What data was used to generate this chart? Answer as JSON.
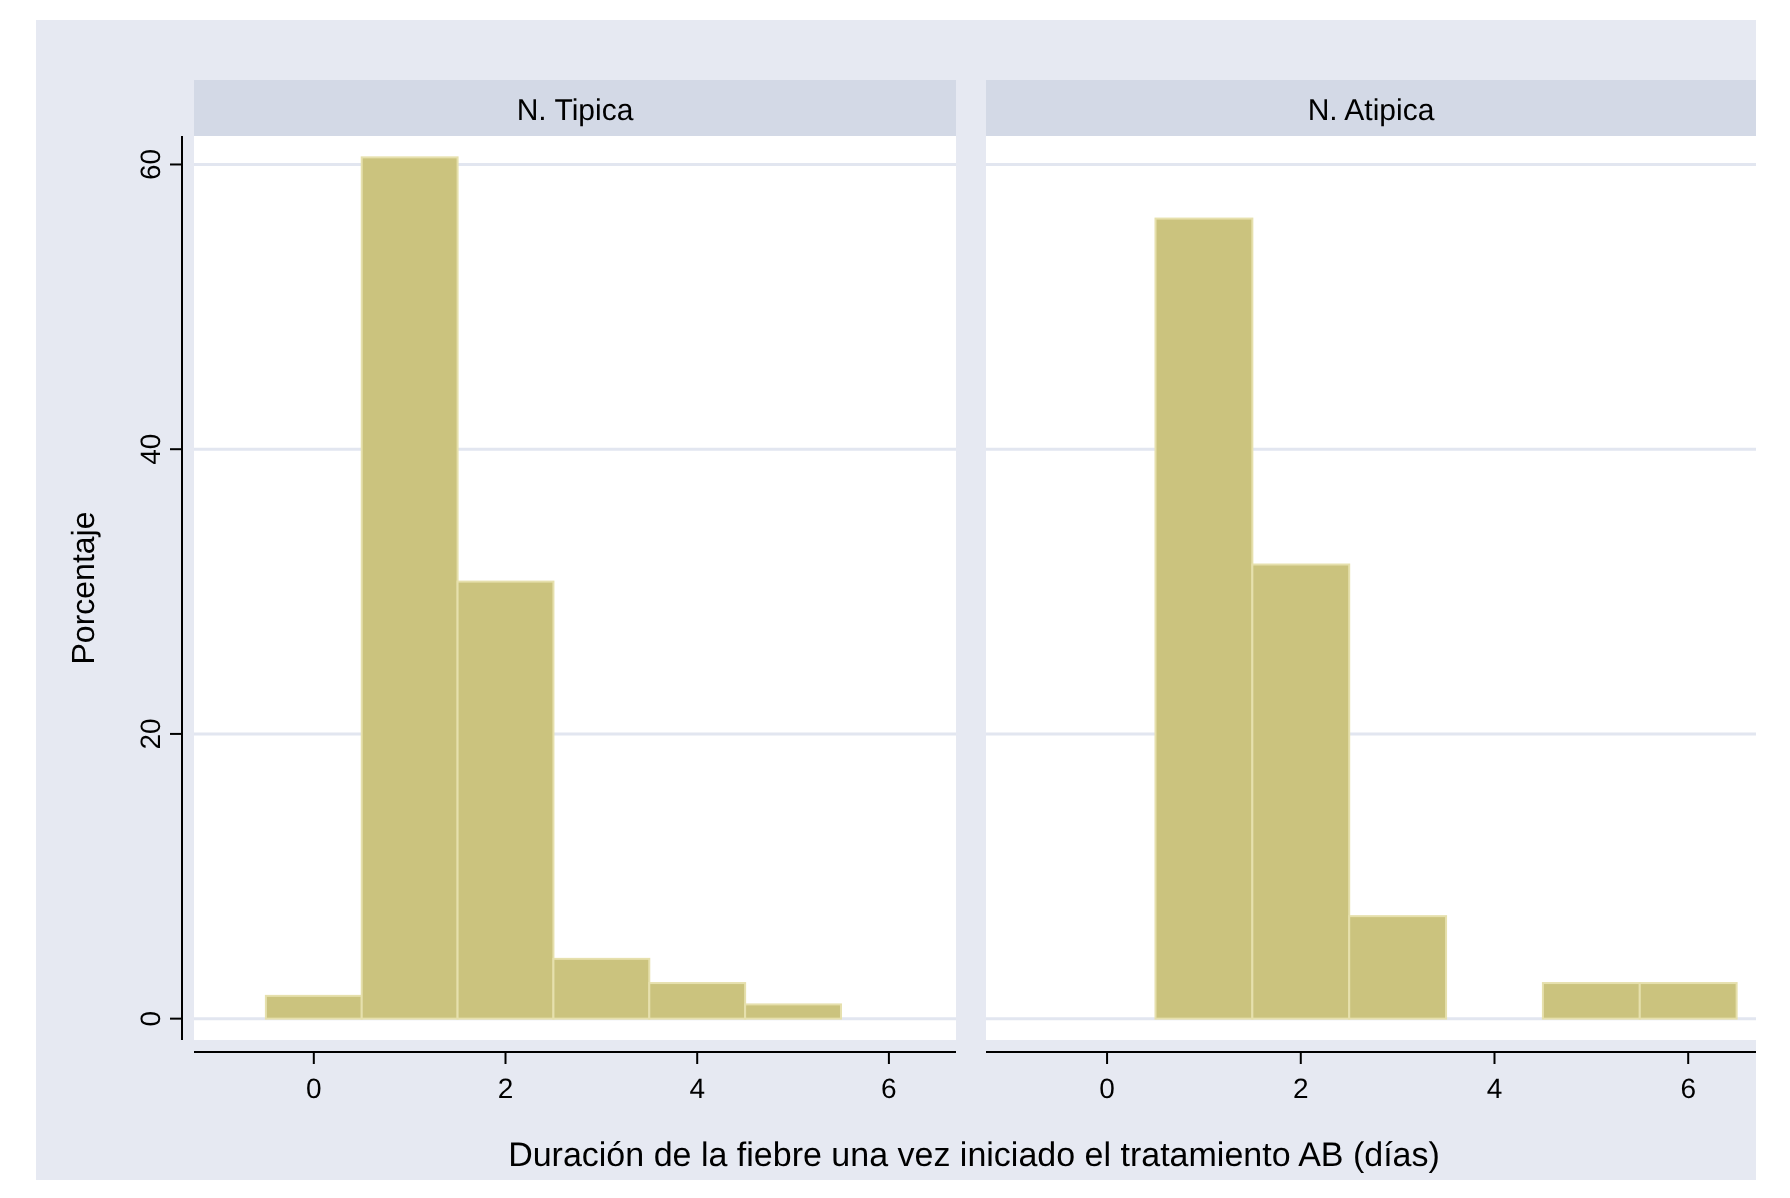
{
  "chart_data": [
    {
      "type": "histogram",
      "title": "N. Tipica",
      "ylabel": "Porcentaje",
      "xlabel": "Duración de la fiebre una vez iniciado el tratamiento AB (días)",
      "bins": [
        -0.5,
        0.5,
        1.5,
        2.5,
        3.5,
        4.5,
        5.5,
        6.5
      ],
      "values": [
        1.6,
        60.5,
        30.7,
        4.2,
        2.5,
        1.0,
        0
      ],
      "color": "#cbc37e",
      "xlim": [
        -1.25,
        6.7
      ],
      "xticks": [
        0,
        2,
        4,
        6
      ],
      "ylim": [
        -1.5,
        62
      ],
      "yticks": [
        0,
        20,
        40,
        60
      ],
      "grid": "y"
    },
    {
      "type": "histogram",
      "title": "N. Atipica",
      "bins": [
        -0.5,
        0.5,
        1.5,
        2.5,
        3.5,
        4.5,
        5.5,
        6.5
      ],
      "values": [
        0,
        56.2,
        31.9,
        7.2,
        0,
        2.5,
        2.5
      ],
      "color": "#cbc37e",
      "xlim": [
        -1.25,
        6.7
      ],
      "xticks": [
        0,
        2,
        4,
        6
      ],
      "ylim": [
        -1.5,
        62
      ],
      "yticks": [
        0,
        20,
        40,
        60
      ],
      "grid": "y",
      "tick_labels": "x"
    }
  ]
}
